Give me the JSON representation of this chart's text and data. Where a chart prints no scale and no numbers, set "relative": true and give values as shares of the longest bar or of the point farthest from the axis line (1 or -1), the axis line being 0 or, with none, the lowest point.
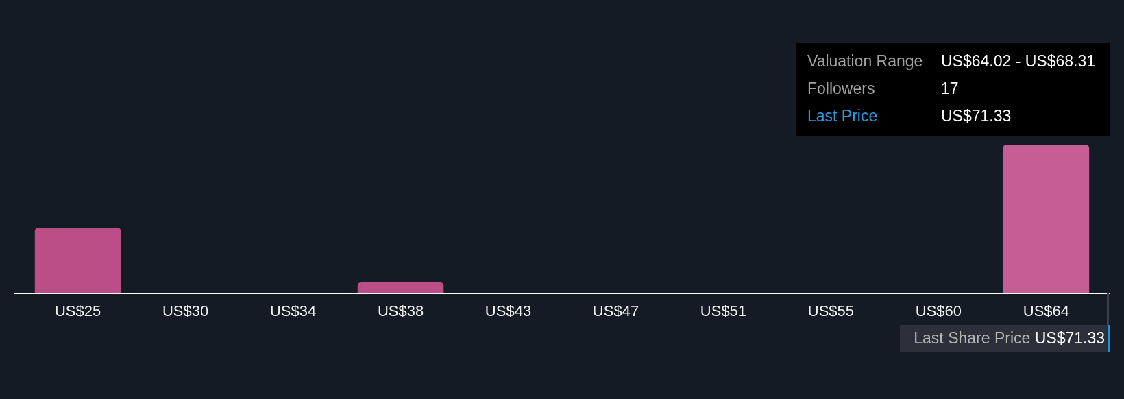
{
  "chart_data": {
    "type": "bar",
    "relative": true,
    "categories": [
      "US$25",
      "US$30",
      "US$34",
      "US$38",
      "US$43",
      "US$47",
      "US$51",
      "US$55",
      "US$60",
      "US$64"
    ],
    "values": [
      0.44,
      0,
      0,
      0.07,
      0,
      0,
      0,
      0,
      0,
      1
    ],
    "colors": [
      "#bb4d87",
      "#bb4d87",
      "#bb4d87",
      "#bb4d87",
      "#bb4d87",
      "#bb4d87",
      "#bb4d87",
      "#bb4d87",
      "#bb4d87",
      "#c45e94"
    ],
    "annotations": [
      "Valuation Range",
      "US$64.02 - US$68.31",
      "Followers",
      "17",
      "Last Price",
      "US$71.33",
      "Last Share Price",
      "US$71.33"
    ]
  }
}
